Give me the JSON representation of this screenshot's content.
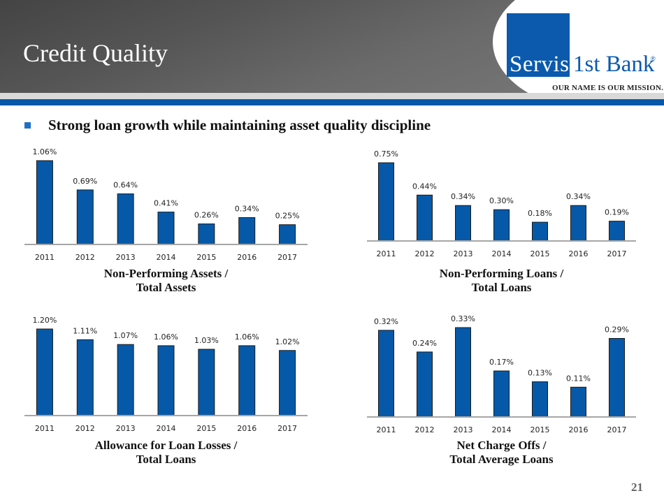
{
  "header": {
    "title": "Credit Quality",
    "logo": {
      "name_part1": "Servis",
      "name_part2": "1st Bank",
      "registered": "®",
      "tagline": "OUR NAME IS OUR MISSION."
    }
  },
  "headline": "Strong loan growth while maintaining asset quality discipline",
  "page_number": "21",
  "colors": {
    "bar": "#0659a8",
    "accent_band": "#0659a8",
    "axis": "#a6a6a6"
  },
  "chart_data": [
    {
      "type": "bar",
      "title_line1": "Non-Performing Assets /",
      "title_line2": "Total Assets",
      "categories": [
        "2011",
        "2012",
        "2013",
        "2014",
        "2015",
        "2016",
        "2017"
      ],
      "values": [
        1.06,
        0.69,
        0.64,
        0.41,
        0.26,
        0.34,
        0.25
      ],
      "labels": [
        "1.06%",
        "0.69%",
        "0.64%",
        "0.41%",
        "0.26%",
        "0.34%",
        "0.25%"
      ],
      "ylim": [
        0,
        1.06
      ]
    },
    {
      "type": "bar",
      "title_line1": "Non-Performing Loans /",
      "title_line2": "Total Loans",
      "categories": [
        "2011",
        "2012",
        "2013",
        "2014",
        "2015",
        "2016",
        "2017"
      ],
      "values": [
        0.75,
        0.44,
        0.34,
        0.3,
        0.18,
        0.34,
        0.19
      ],
      "labels": [
        "0.75%",
        "0.44%",
        "0.34%",
        "0.30%",
        "0.18%",
        "0.34%",
        "0.19%"
      ],
      "ylim": [
        0,
        0.75
      ]
    },
    {
      "type": "bar",
      "title_line1": "Allowance for Loan Losses /",
      "title_line2": "Total Loans",
      "categories": [
        "2011",
        "2012",
        "2013",
        "2014",
        "2015",
        "2016",
        "2017"
      ],
      "values": [
        1.2,
        1.11,
        1.07,
        1.06,
        1.03,
        1.06,
        1.02
      ],
      "labels": [
        "1.20%",
        "1.11%",
        "1.07%",
        "1.06%",
        "1.03%",
        "1.06%",
        "1.02%"
      ],
      "ylim": [
        0.75,
        1.2
      ]
    },
    {
      "type": "bar",
      "title_line1": "Net Charge Offs /",
      "title_line2": "Total Average Loans",
      "categories": [
        "2011",
        "2012",
        "2013",
        "2014",
        "2015",
        "2016",
        "2017"
      ],
      "values": [
        0.32,
        0.24,
        0.33,
        0.17,
        0.13,
        0.11,
        0.29
      ],
      "labels": [
        "0.32%",
        "0.24%",
        "0.33%",
        "0.17%",
        "0.13%",
        "0.11%",
        "0.29%"
      ],
      "ylim": [
        0,
        0.33
      ]
    }
  ]
}
